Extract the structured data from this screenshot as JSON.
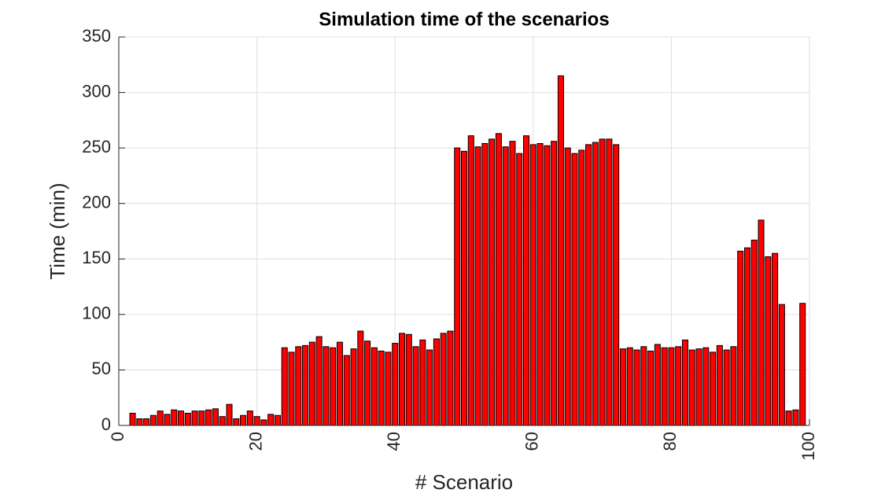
{
  "chart_data": {
    "type": "bar",
    "title": "Simulation time of the scenarios",
    "x_label": "# Scenario",
    "y_label": "Time (min)",
    "x": [
      2,
      3,
      4,
      5,
      6,
      7,
      8,
      9,
      10,
      11,
      12,
      13,
      14,
      15,
      16,
      17,
      18,
      19,
      20,
      21,
      22,
      23,
      24,
      25,
      26,
      27,
      28,
      29,
      30,
      31,
      32,
      33,
      34,
      35,
      36,
      37,
      38,
      39,
      40,
      41,
      42,
      43,
      44,
      45,
      46,
      47,
      48,
      49,
      50,
      51,
      52,
      53,
      54,
      55,
      56,
      57,
      58,
      59,
      60,
      61,
      62,
      63,
      64,
      65,
      66,
      67,
      68,
      69,
      70,
      71,
      72,
      73,
      74,
      75,
      76,
      77,
      78,
      79,
      80,
      81,
      82,
      83,
      84,
      85,
      86,
      87,
      88,
      89,
      90,
      91,
      92,
      93,
      94,
      95,
      96,
      97,
      98,
      99
    ],
    "values": [
      11,
      6,
      6,
      9,
      13,
      10,
      14,
      13,
      11,
      13,
      13,
      14,
      15,
      8,
      19,
      6,
      9,
      13,
      8,
      5,
      10,
      9,
      70,
      66,
      71,
      72,
      75,
      80,
      71,
      70,
      75,
      63,
      69,
      85,
      76,
      70,
      67,
      66,
      74,
      83,
      82,
      71,
      77,
      68,
      78,
      83,
      85,
      250,
      247,
      261,
      251,
      254,
      258,
      263,
      251,
      256,
      245,
      261,
      253,
      254,
      252,
      256,
      315,
      250,
      245,
      248,
      253,
      255,
      258,
      258,
      253,
      69,
      70,
      68,
      71,
      67,
      73,
      70,
      70,
      71,
      77,
      68,
      69,
      70,
      66,
      72,
      68,
      71,
      157,
      160,
      167,
      185,
      152,
      155,
      109,
      13,
      14,
      110
    ],
    "color": "#ff0000",
    "xlim": [
      0,
      100
    ],
    "xticks": [
      0,
      20,
      40,
      60,
      80,
      100
    ],
    "ylim": [
      0,
      350
    ],
    "yticks": [
      0,
      50,
      100,
      150,
      200,
      250,
      300,
      350
    ],
    "grid": true
  }
}
